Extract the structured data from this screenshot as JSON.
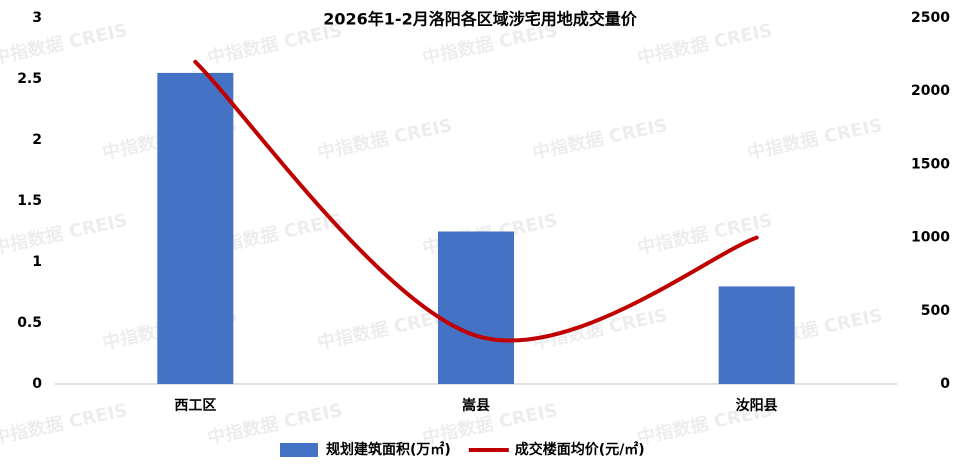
{
  "chart_data": {
    "type": "combo",
    "title": "2026年1-2月洛阳各区域涉宅用地成交量价",
    "watermark": "中指数据 CREIS",
    "categories": [
      "西工区",
      "嵩县",
      "汝阳县"
    ],
    "series": [
      {
        "name": "规划建筑面积(万㎡)",
        "type": "bar",
        "color": "#4472c4",
        "values": [
          2.55,
          1.25,
          0.8
        ]
      },
      {
        "name": "成交楼面均价(元/㎡)",
        "type": "line",
        "axis": "y2",
        "smooth": true,
        "color": "#c00000",
        "values": [
          2200,
          330,
          1000
        ]
      }
    ],
    "ylim": [
      0,
      3
    ],
    "yticks": [
      0,
      0.5,
      1,
      1.5,
      2,
      2.5,
      3
    ],
    "y2lim": [
      0,
      2500
    ],
    "y2ticks": [
      0,
      500,
      1000,
      1500,
      2000,
      2500
    ],
    "grid": false,
    "legend": "bottom"
  }
}
